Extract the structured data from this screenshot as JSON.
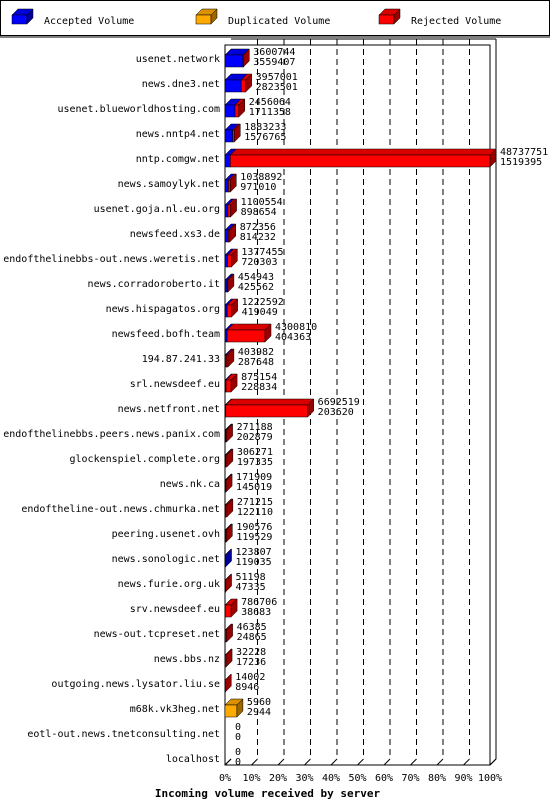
{
  "chart_data": {
    "type": "bar",
    "orientation": "horizontal",
    "style": "3d-stacked",
    "xlabel": "Incoming volume received by server",
    "xlim": [
      0,
      100
    ],
    "xticks": [
      "0%",
      "10%",
      "20%",
      "30%",
      "40%",
      "50%",
      "60%",
      "70%",
      "80%",
      "90%",
      "100%"
    ],
    "grid": true,
    "legend_position": "top",
    "legend": [
      {
        "name": "Accepted Volume",
        "color": "#0000ff"
      },
      {
        "name": "Duplicated Volume",
        "color": "#ffaa00"
      },
      {
        "name": "Rejected Volume",
        "color": "#ff0000"
      }
    ],
    "categories": [
      "usenet.network",
      "news.dne3.net",
      "usenet.blueworldhosting.com",
      "news.nntp4.net",
      "nntp.comgw.net",
      "news.samoylyk.net",
      "usenet.goja.nl.eu.org",
      "newsfeed.xs3.de",
      "endofthelinebbs-out.news.weretis.net",
      "news.corradoroberto.it",
      "news.hispagatos.org",
      "newsfeed.bofh.team",
      "194.87.241.33",
      "srl.newsdeef.eu",
      "news.netfront.net",
      "endofthelinebbs.peers.news.panix.com",
      "glockenspiel.complete.org",
      "news.nk.ca",
      "endoftheline-out.news.chmurka.net",
      "peering.usenet.ovh",
      "news.sonologic.net",
      "news.furie.org.uk",
      "srv.newsdeef.eu",
      "news-out.tcpreset.net",
      "news.bbs.nz",
      "outgoing.news.lysator.liu.se",
      "m68k.vk3heg.net",
      "eotl-out.news.tnetconsulting.net",
      "localhost"
    ],
    "labels_top": [
      "3600744",
      "3957001",
      "2456064",
      "1883233",
      "48737751",
      "1038892",
      "1100554",
      "872356",
      "1377455",
      "454943",
      "1222592",
      "4300810",
      "403982",
      "875154",
      "6692519",
      "271188",
      "306271",
      "171909",
      "271215",
      "190576",
      "123807",
      "51198",
      "786706",
      "46385",
      "32228",
      "14002",
      "5960",
      "0",
      "0"
    ],
    "labels_bottom": [
      "3559407",
      "2823501",
      "1711358",
      "1576765",
      "1519395",
      "971010",
      "898654",
      "814232",
      "720303",
      "425562",
      "419049",
      "404363",
      "287648",
      "228834",
      "203620",
      "202879",
      "197335",
      "145019",
      "122110",
      "119529",
      "119035",
      "47335",
      "38683",
      "24865",
      "17236",
      "8946",
      "2944",
      "0",
      "0"
    ],
    "series": [
      {
        "name": "Accepted Volume",
        "color": "#0000ff",
        "values": [
          6.8,
          6.1,
          3.8,
          2.9,
          2.0,
          1.3,
          1.1,
          1.3,
          1.0,
          0.8,
          0.8,
          0.8,
          0.5,
          0.4,
          0.3,
          0.3,
          0.3,
          0.2,
          0.2,
          0.2,
          0.2,
          0.1,
          0.1,
          0.1,
          0.0,
          0.0,
          0.0,
          0,
          0
        ]
      },
      {
        "name": "Duplicated Volume",
        "color": "#ffaa00",
        "values": [
          0,
          0,
          0,
          0,
          0,
          0,
          0,
          0,
          0,
          0,
          0,
          0,
          0,
          0,
          0,
          0,
          0,
          0,
          0,
          0,
          0,
          0,
          0,
          0,
          0,
          0,
          4.5,
          0,
          0
        ]
      },
      {
        "name": "Rejected Volume",
        "color": "#ff0000",
        "values": [
          0.1,
          1.7,
          1.4,
          0.6,
          98.0,
          0.7,
          1.0,
          0.5,
          1.4,
          0.3,
          1.7,
          14.3,
          0.6,
          1.9,
          30.9,
          0.3,
          0.4,
          0.2,
          0.5,
          0.3,
          0.0,
          0.1,
          2.2,
          0.5,
          0.4,
          0.1,
          0.0,
          0,
          0
        ]
      }
    ]
  }
}
